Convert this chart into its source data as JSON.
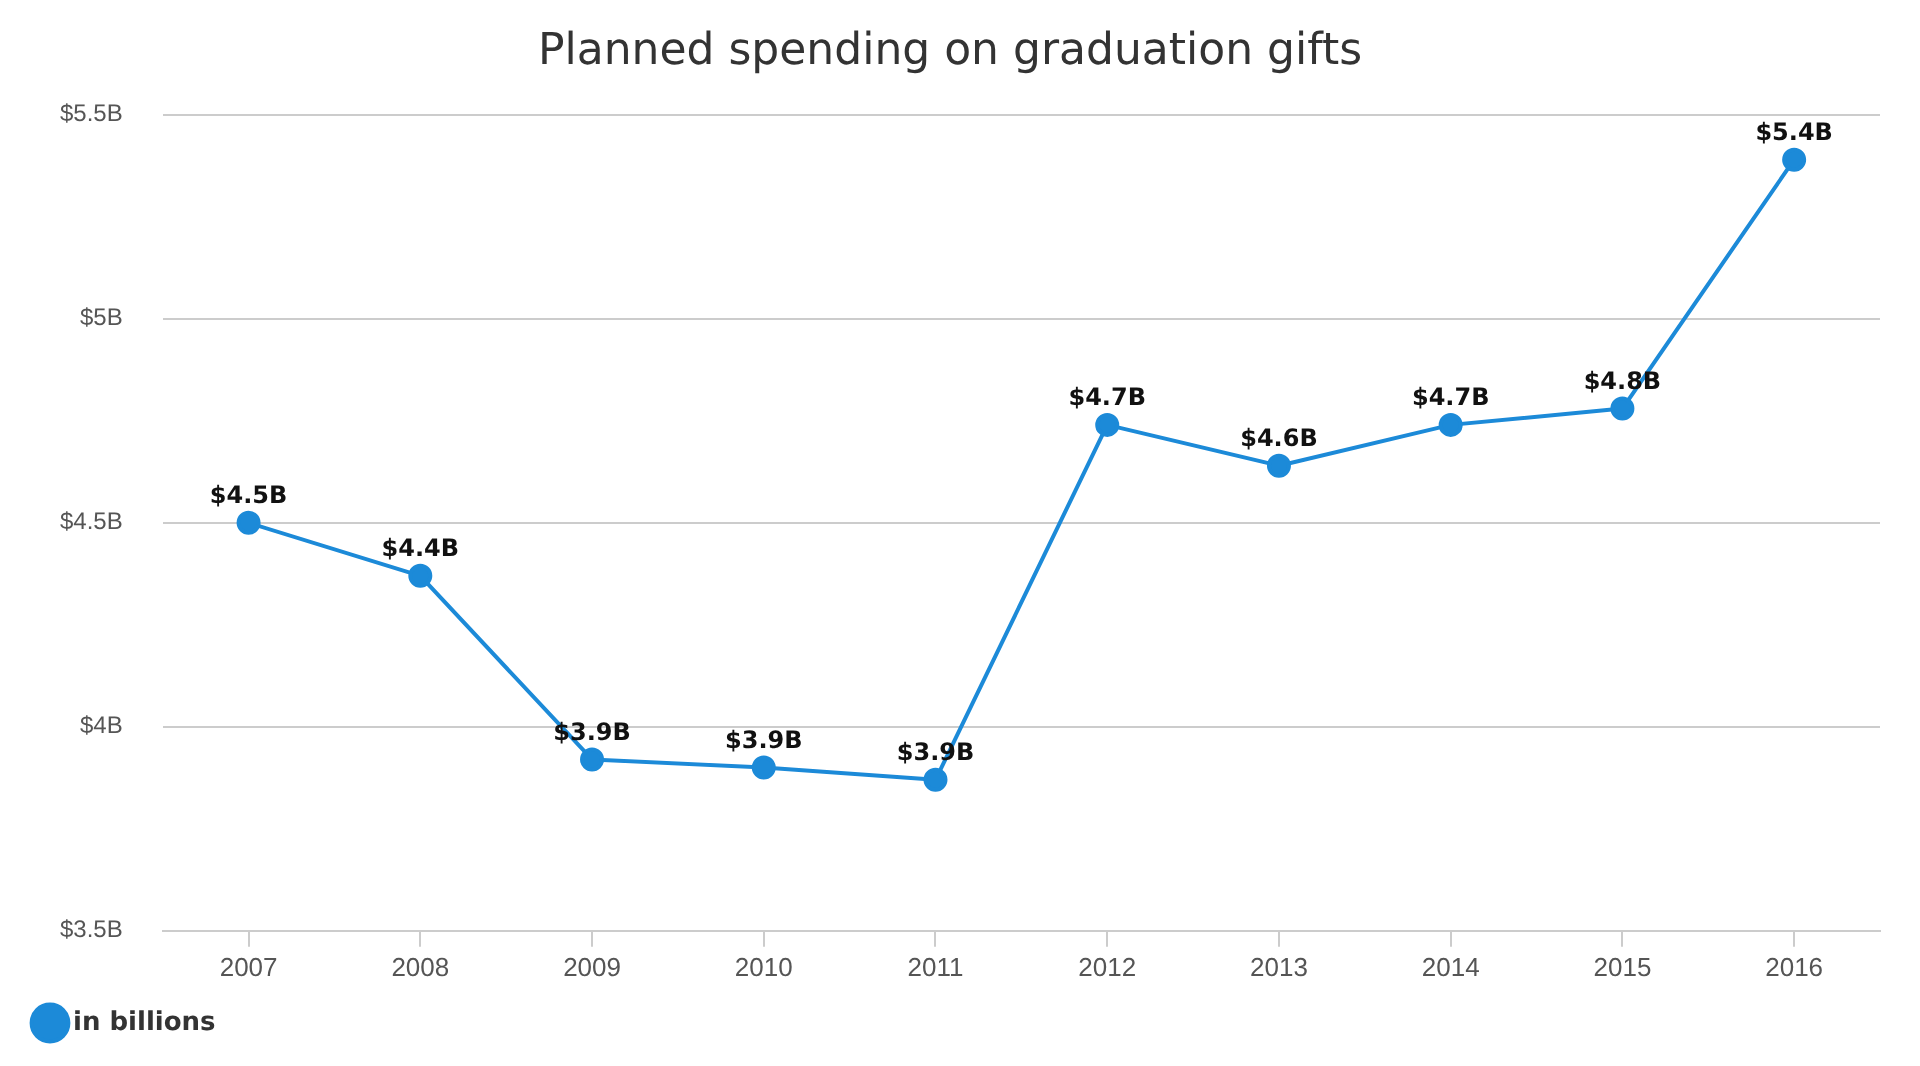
{
  "chart_data": {
    "type": "line",
    "title": "Planned spending on graduation gifts",
    "categories": [
      "2007",
      "2008",
      "2009",
      "2010",
      "2011",
      "2012",
      "2013",
      "2014",
      "2015",
      "2016"
    ],
    "series": [
      {
        "name": "in billions",
        "color": "#1c8ad8",
        "values": [
          4.5,
          4.37,
          3.92,
          3.9,
          3.87,
          4.74,
          4.64,
          4.74,
          4.78,
          5.39
        ],
        "value_labels": [
          "$4.5B",
          "$4.4B",
          "$3.9B",
          "$3.9B",
          "$3.9B",
          "$4.7B",
          "$4.6B",
          "$4.7B",
          "$4.8B",
          "$5.4B"
        ]
      }
    ],
    "ylim": [
      3.5,
      5.5
    ],
    "yticks": [
      {
        "value": 3.5,
        "label": "$3.5B"
      },
      {
        "value": 4,
        "label": "$4B"
      },
      {
        "value": 4.5,
        "label": "$4.5B"
      },
      {
        "value": 5,
        "label": "$5B"
      },
      {
        "value": 5.5,
        "label": "$5.5B"
      }
    ],
    "grid": "y",
    "legend": "bottom left",
    "marker": "circle",
    "line_style": "solid"
  }
}
